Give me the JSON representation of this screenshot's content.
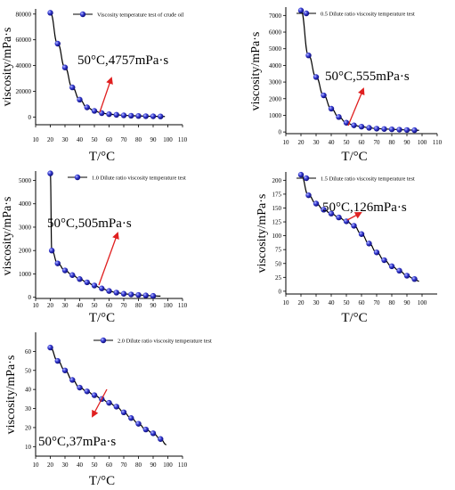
{
  "chart_data": [
    {
      "type": "line",
      "legend": "Viscosity temperature test of crude oil",
      "xlabel": "T/°C",
      "ylabel": "viscosity/mPa·s",
      "annotation": "50°C,4757mPa·s",
      "xlim": [
        10,
        110
      ],
      "ylim": [
        -6000,
        84000
      ],
      "xticks": [
        "10",
        "20",
        "30",
        "40",
        "50",
        "60",
        "70",
        "80",
        "90",
        "100",
        "110"
      ],
      "yticks": [
        "0",
        "20000",
        "40000",
        "60000",
        "80000"
      ],
      "x": [
        20,
        25,
        30,
        35,
        40,
        45,
        50,
        55,
        60,
        65,
        70,
        75,
        80,
        85,
        90,
        95,
        98
      ],
      "values": [
        81000,
        57000,
        38500,
        23000,
        13500,
        7500,
        4757,
        3000,
        2200,
        1700,
        1300,
        1000,
        800,
        650,
        550,
        450,
        400
      ],
      "markers": true
    },
    {
      "type": "line",
      "legend": "0.5 Dilute ratio viscosity temperature test",
      "xlabel": "T/°C",
      "ylabel": "viscosity/mPa·s",
      "annotation": "50°C,555mPa·s",
      "xlim": [
        10,
        110
      ],
      "ylim": [
        -100,
        7500
      ],
      "xticks": [
        "10",
        "20",
        "30",
        "40",
        "50",
        "60",
        "70",
        "80",
        "90",
        "100",
        "110"
      ],
      "yticks": [
        "0",
        "1000",
        "2000",
        "3000",
        "4000",
        "5000",
        "6000",
        "7000"
      ],
      "x": [
        20,
        25,
        30,
        35,
        40,
        45,
        50,
        55,
        60,
        65,
        70,
        75,
        80,
        85,
        90,
        95,
        98
      ],
      "values": [
        7300,
        4600,
        3300,
        2200,
        1400,
        900,
        555,
        400,
        320,
        250,
        200,
        180,
        160,
        140,
        120,
        110,
        100
      ],
      "markers": true
    },
    {
      "type": "line",
      "legend": "1.0 Dilute ratio viscosity temperature test",
      "xlabel": "T/°C",
      "ylabel": "viscosity/mPa·s",
      "annotation": "50°C,505mPa·s",
      "xlim": [
        10,
        110
      ],
      "ylim": [
        -50,
        5400
      ],
      "xticks": [
        "10",
        "20",
        "30",
        "40",
        "50",
        "60",
        "70",
        "80",
        "90",
        "100",
        "110"
      ],
      "yticks": [
        "0",
        "1000",
        "2000",
        "3000",
        "4000",
        "5000"
      ],
      "x": [
        20,
        21,
        25,
        30,
        35,
        40,
        45,
        50,
        55,
        60,
        65,
        70,
        75,
        80,
        85,
        90,
        95
      ],
      "values": [
        5300,
        2000,
        1450,
        1150,
        950,
        780,
        640,
        505,
        380,
        270,
        200,
        150,
        120,
        100,
        80,
        60,
        50
      ],
      "markers": true
    },
    {
      "type": "line",
      "legend": "1.5 Dilute ratio viscosity temperature test",
      "xlabel": "T/°C",
      "ylabel": "viscosity/mPa·s",
      "annotation": "50°C,126mPa·s",
      "xlim": [
        10,
        110
      ],
      "ylim": [
        -5,
        215
      ],
      "xticks": [
        "10",
        "20",
        "30",
        "40",
        "50",
        "60",
        "70",
        "80",
        "90",
        "100"
      ],
      "yticks": [
        "0",
        "25",
        "50",
        "75",
        "100",
        "125",
        "150",
        "175",
        "200"
      ],
      "x": [
        20,
        25,
        30,
        35,
        40,
        45,
        50,
        55,
        60,
        65,
        70,
        75,
        80,
        85,
        90,
        95,
        98
      ],
      "values": [
        210,
        173,
        158,
        147,
        140,
        133,
        126,
        118,
        103,
        86,
        70,
        56,
        45,
        37,
        28,
        22,
        18
      ],
      "markers": true
    },
    {
      "type": "line",
      "legend": "2.0 Dilute ratio viscosity temperature test",
      "xlabel": "T/°C",
      "ylabel": "viscosity/mPa·s",
      "annotation": "50°C,37mPa·s",
      "xlim": [
        10,
        110
      ],
      "ylim": [
        5,
        70
      ],
      "xticks": [
        "10",
        "20",
        "30",
        "40",
        "50",
        "60",
        "70",
        "80",
        "90",
        "100",
        "110"
      ],
      "yticks": [
        "10",
        "20",
        "30",
        "40",
        "50",
        "60"
      ],
      "x": [
        20,
        25,
        30,
        35,
        40,
        45,
        50,
        55,
        60,
        65,
        70,
        75,
        80,
        85,
        90,
        95,
        99
      ],
      "values": [
        62,
        55,
        50,
        45,
        41,
        39,
        37,
        35,
        33,
        31,
        28,
        25,
        22,
        19,
        17,
        14,
        11
      ],
      "markers": true
    }
  ],
  "colors": {
    "line": "#000000",
    "marker": "#1c1cb0",
    "marker_highlight": "#9fa6ff",
    "arrow": "#e02020"
  }
}
